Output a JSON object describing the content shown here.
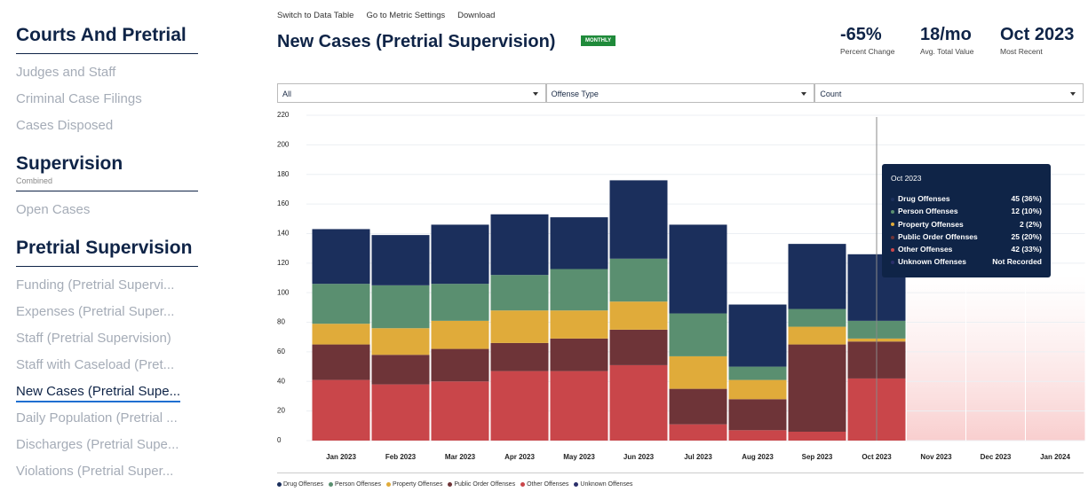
{
  "sidebar": {
    "sections": [
      {
        "title": "Courts And Pretrial",
        "items": [
          {
            "label": "Judges and Staff"
          },
          {
            "label": "Criminal Case Filings"
          },
          {
            "label": "Cases Disposed"
          }
        ]
      },
      {
        "title": "Supervision",
        "subtitle": "Combined",
        "items": [
          {
            "label": "Open Cases"
          }
        ]
      },
      {
        "title": "Pretrial Supervision",
        "items": [
          {
            "label": "Funding (Pretrial Supervi..."
          },
          {
            "label": "Expenses (Pretrial Super..."
          },
          {
            "label": "Staff (Pretrial Supervision)"
          },
          {
            "label": "Staff with Caseload (Pret..."
          },
          {
            "label": "New Cases (Pretrial Supe...",
            "active": true
          },
          {
            "label": "Daily Population (Pretrial ..."
          },
          {
            "label": "Discharges (Pretrial Supe..."
          },
          {
            "label": "Violations (Pretrial Super..."
          }
        ]
      }
    ]
  },
  "toolbar": {
    "links": [
      "Switch to Data Table",
      "Go to Metric Settings",
      "Download"
    ]
  },
  "header": {
    "title": "New Cases (Pretrial Supervision)",
    "badge": "MONTHLY"
  },
  "stats": [
    {
      "value": "-65%",
      "label": "Percent Change"
    },
    {
      "value": "18/mo",
      "label": "Avg. Total Value"
    },
    {
      "value": "Oct 2023",
      "label": "Most Recent"
    }
  ],
  "filters": [
    "All",
    "Offense Type",
    "Count"
  ],
  "tooltip": {
    "title": "Oct 2023",
    "rows": [
      {
        "name": "Drug Offenses",
        "value": "45 (36%)"
      },
      {
        "name": "Person Offenses",
        "value": "12 (10%)"
      },
      {
        "name": "Property Offenses",
        "value": "2 (2%)"
      },
      {
        "name": "Public Order Offenses",
        "value": "25 (20%)"
      },
      {
        "name": "Other Offenses",
        "value": "42 (33%)"
      },
      {
        "name": "Unknown Offenses",
        "value": "Not Recorded"
      }
    ]
  },
  "chart_data": {
    "type": "stacked_bar",
    "categories": [
      "Jan 2023",
      "Feb 2023",
      "Mar 2023",
      "Apr 2023",
      "May 2023",
      "Jun 2023",
      "Jul 2023",
      "Aug 2023",
      "Sep 2023",
      "Oct 2023",
      "Nov 2023",
      "Dec 2023",
      "Jan 2024"
    ],
    "series": [
      {
        "name": "Other Offenses",
        "color": "#c9464a",
        "values": [
          41,
          38,
          40,
          47,
          47,
          51,
          11,
          7,
          6,
          42,
          null,
          null,
          null
        ]
      },
      {
        "name": "Public Order Offenses",
        "color": "#6e3438",
        "values": [
          24,
          20,
          22,
          19,
          22,
          24,
          24,
          21,
          59,
          25,
          null,
          null,
          null
        ]
      },
      {
        "name": "Property Offenses",
        "color": "#e0ab3a",
        "values": [
          14,
          18,
          19,
          22,
          19,
          19,
          22,
          13,
          12,
          2,
          null,
          null,
          null
        ]
      },
      {
        "name": "Person Offenses",
        "color": "#5a8f70",
        "values": [
          27,
          29,
          25,
          24,
          28,
          29,
          29,
          9,
          12,
          12,
          null,
          null,
          null
        ]
      },
      {
        "name": "Drug Offenses",
        "color": "#1b2f5c",
        "values": [
          37,
          34,
          40,
          41,
          35,
          53,
          60,
          42,
          44,
          45,
          null,
          null,
          null
        ]
      },
      {
        "name": "Unknown Offenses",
        "color": "#2b2f6b",
        "values": [
          null,
          null,
          null,
          null,
          null,
          null,
          null,
          null,
          null,
          null,
          null,
          null,
          null
        ]
      }
    ],
    "legend_order": [
      4,
      3,
      2,
      1,
      0,
      5
    ],
    "ylim": [
      0,
      220
    ],
    "yticks": [
      0,
      20,
      40,
      60,
      80,
      100,
      120,
      140,
      160,
      180,
      200,
      220
    ],
    "grid": true
  }
}
